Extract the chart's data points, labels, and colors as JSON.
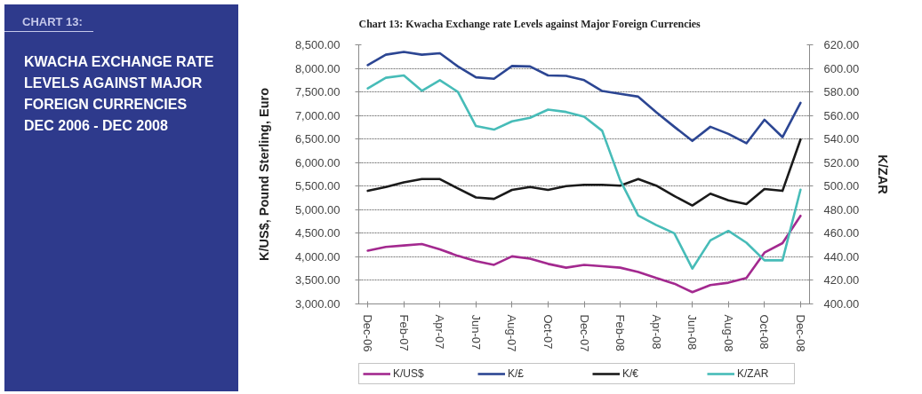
{
  "chart_data": {
    "type": "line",
    "title": "Chart 13: Kwacha Exchange rate Levels against Major Foreign Currencies",
    "annotations": [
      "CHART 13:",
      "KWACHA EXCHANGE RATE LEVELS AGAINST MAJOR FOREIGN CURRENCIES DEC 2006 - DEC 2008"
    ],
    "ylabel": "K/US$, Pound Sterling, Euro",
    "y2label": "K/ZAR",
    "categories": [
      "Dec-06",
      null,
      "Feb-07",
      null,
      "Apr-07",
      null,
      "Jun-07",
      null,
      "Aug-07",
      null,
      "Oct-07",
      null,
      "Dec-07",
      null,
      "Feb-08",
      null,
      "Apr-08",
      null,
      "Jun-08",
      null,
      "Aug-08",
      null,
      "Oct-08",
      null,
      "Dec-08"
    ],
    "series": [
      {
        "name": "K/US$",
        "color": "#a3298f",
        "values": [
          4130,
          4210,
          4240,
          4270,
          4160,
          4020,
          3910,
          3830,
          4010,
          3960,
          3850,
          3770,
          3830,
          3800,
          3770,
          3680,
          3550,
          3430,
          3250,
          3400,
          3450,
          3550,
          4090,
          4290,
          4870
        ]
      },
      {
        "name": "K/£",
        "color": "#2c4693",
        "values": [
          8070,
          8290,
          8350,
          8290,
          8320,
          8040,
          7810,
          7780,
          8050,
          8040,
          7850,
          7840,
          7750,
          7520,
          7460,
          7400,
          7070,
          6760,
          6460,
          6760,
          6610,
          6410,
          6910,
          6540,
          7270
        ]
      },
      {
        "name": "K/€",
        "color": "#1a1a1a",
        "values": [
          5400,
          5480,
          5580,
          5650,
          5650,
          5450,
          5260,
          5230,
          5420,
          5480,
          5420,
          5500,
          5530,
          5530,
          5510,
          5650,
          5510,
          5290,
          5090,
          5340,
          5200,
          5120,
          5440,
          5400,
          6490
        ]
      },
      {
        "name": "K/ZAR",
        "color": "#47bcb8",
        "axis": "y2",
        "values": [
          583,
          592,
          594,
          581,
          590,
          580,
          551,
          548,
          555,
          558,
          565,
          563,
          559,
          547,
          505,
          475,
          467,
          460,
          430,
          454,
          462,
          452,
          437,
          437,
          497
        ]
      }
    ],
    "ylim": [
      3000,
      8500
    ],
    "yticks": [
      {
        "value": 3000,
        "label": "3,000.00"
      },
      {
        "value": 3500,
        "label": "3,500.00"
      },
      {
        "value": 4000,
        "label": "4,000.00"
      },
      {
        "value": 4500,
        "label": "4,500.00"
      },
      {
        "value": 5000,
        "label": "5,000.00"
      },
      {
        "value": 5500,
        "label": "5,500.00"
      },
      {
        "value": 6000,
        "label": "6,000.00"
      },
      {
        "value": 6500,
        "label": "6,500.00"
      },
      {
        "value": 7000,
        "label": "7,000.00"
      },
      {
        "value": 7500,
        "label": "7,500.00"
      },
      {
        "value": 8000,
        "label": "8,000.00"
      },
      {
        "value": 8500,
        "label": "8,500.00"
      }
    ],
    "y2lim": [
      400,
      620
    ],
    "y2ticks": [
      {
        "value": 400,
        "label": "400.00"
      },
      {
        "value": 420,
        "label": "420.00"
      },
      {
        "value": 440,
        "label": "440.00"
      },
      {
        "value": 460,
        "label": "460.00"
      },
      {
        "value": 480,
        "label": "480.00"
      },
      {
        "value": 500,
        "label": "500.00"
      },
      {
        "value": 520,
        "label": "520.00"
      },
      {
        "value": 540,
        "label": "540.00"
      },
      {
        "value": 560,
        "label": "560.00"
      },
      {
        "value": 580,
        "label": "580.00"
      },
      {
        "value": 600,
        "label": "600.00"
      },
      {
        "value": 620,
        "label": "620.00"
      }
    ],
    "grid": "y",
    "legend": "bottom",
    "line_style": "solid"
  }
}
